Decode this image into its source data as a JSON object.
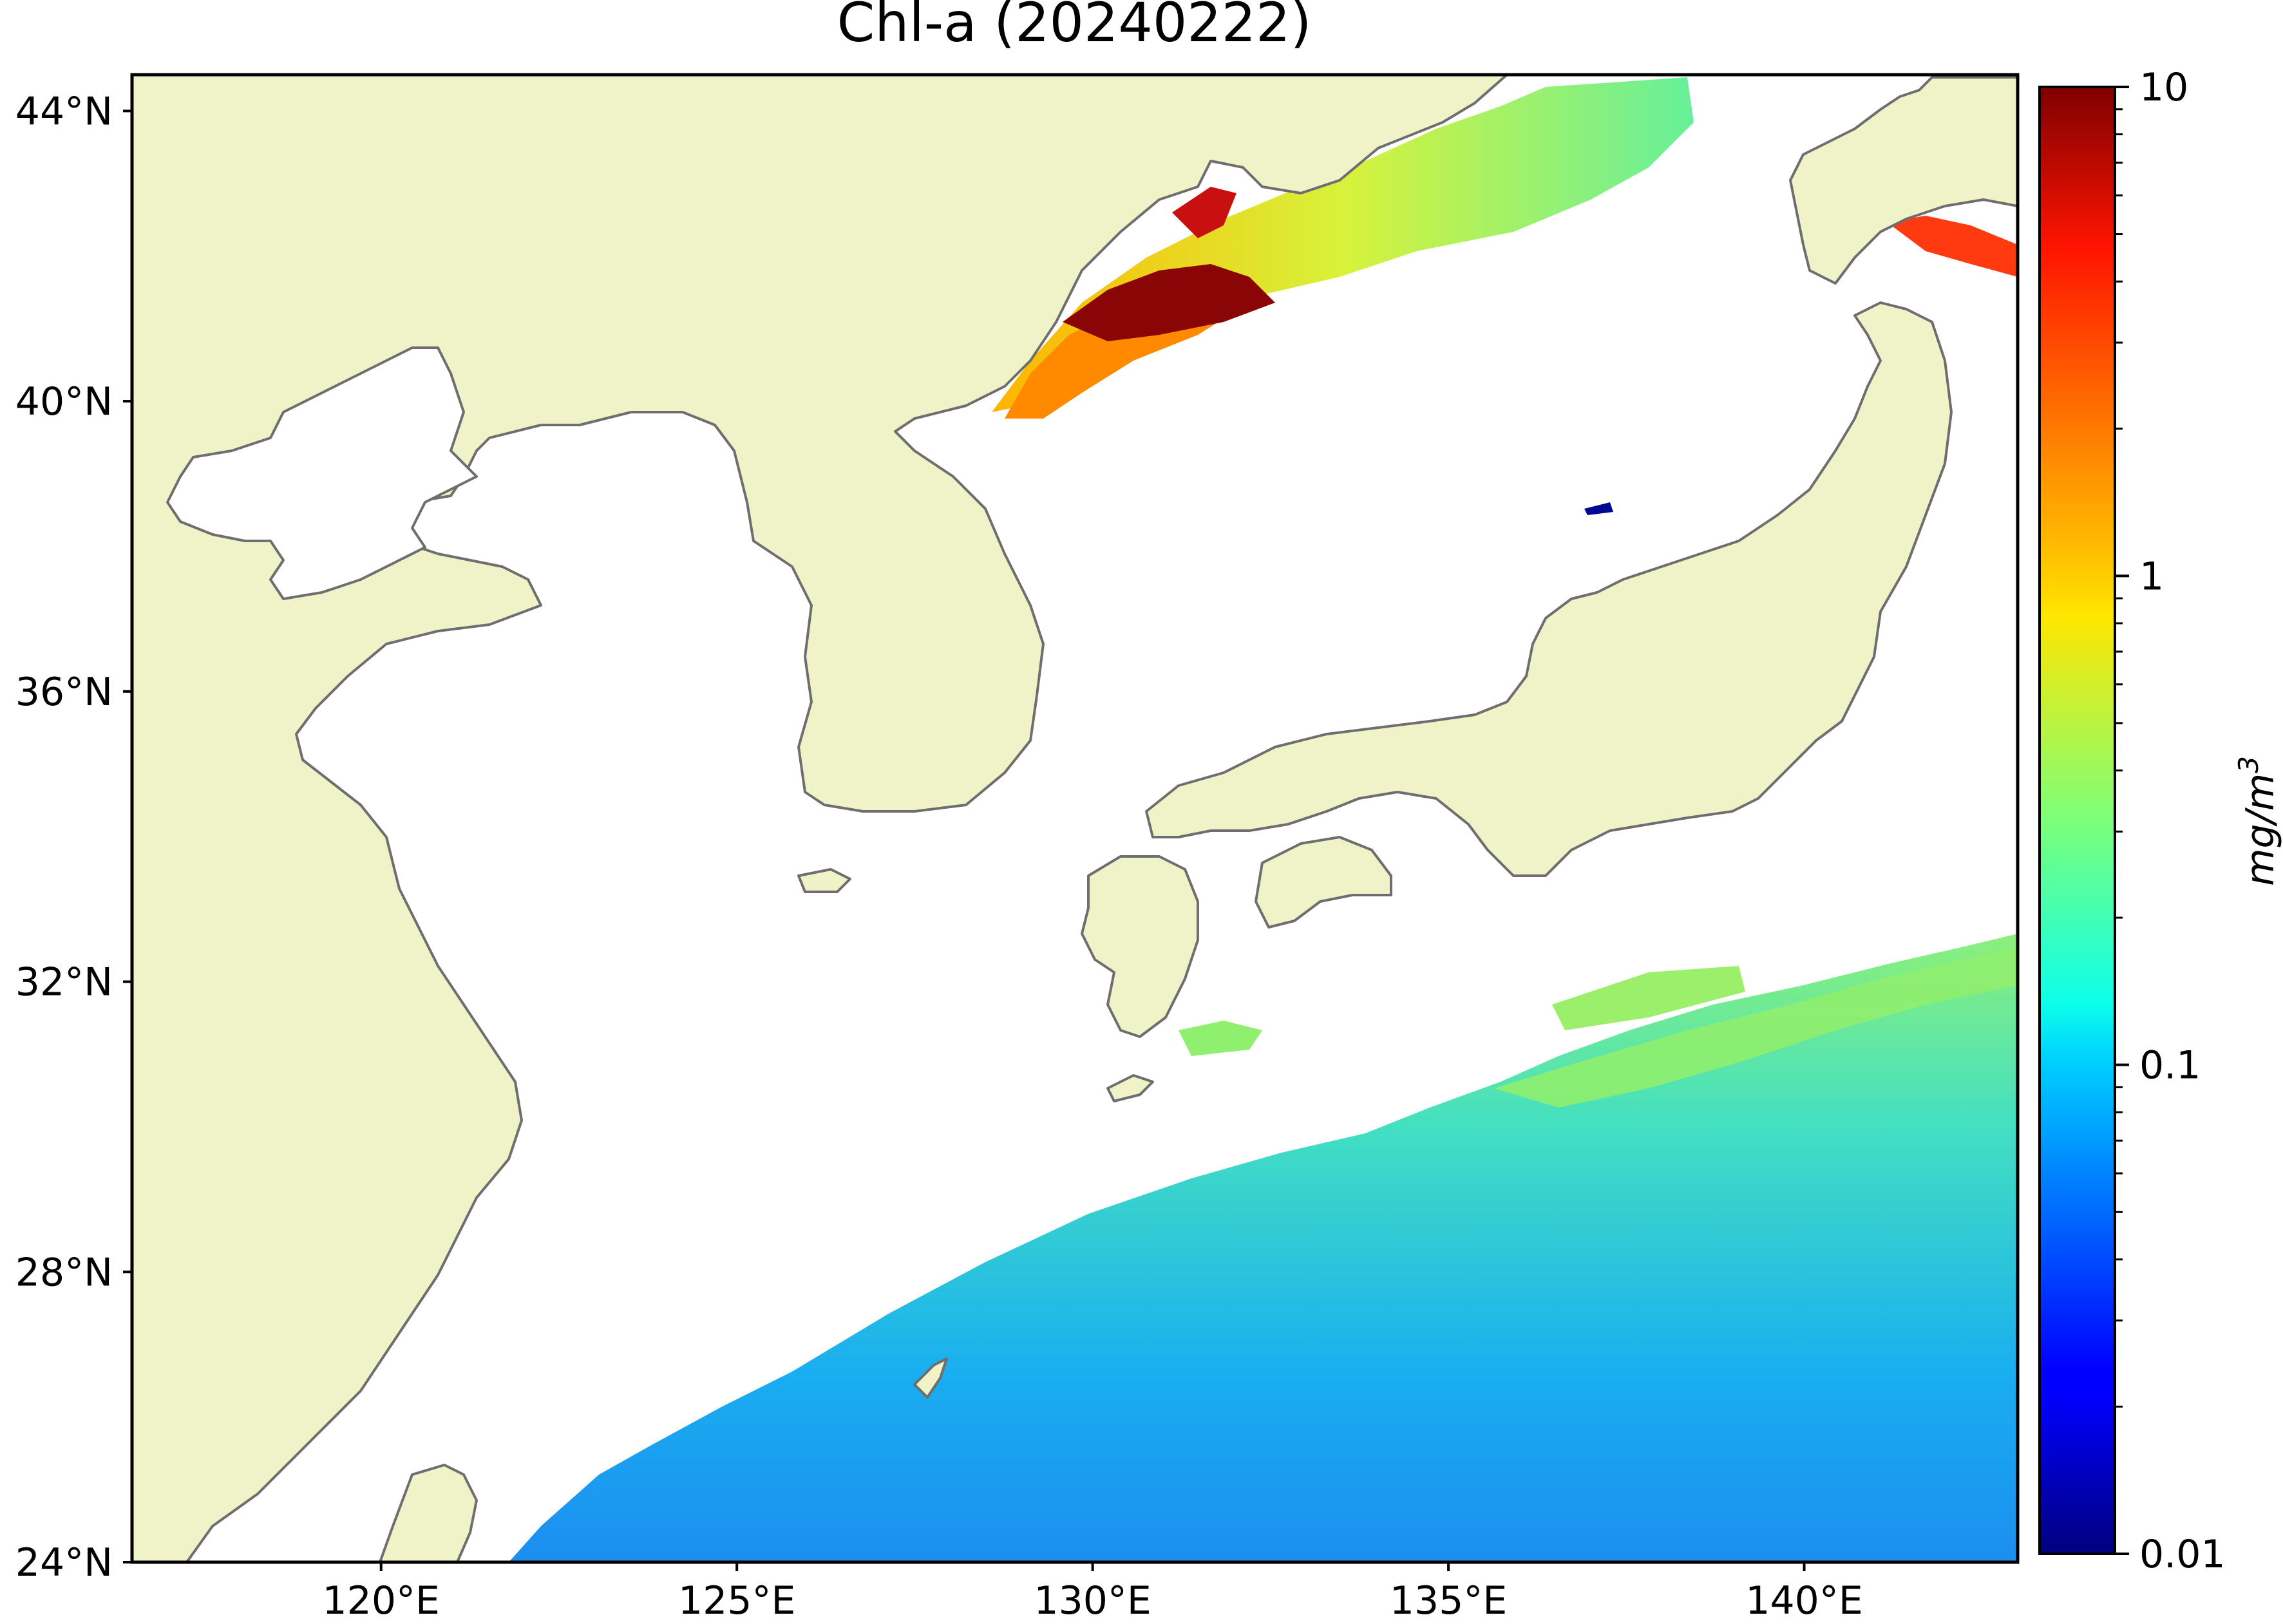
{
  "title": "Chl-a (20240222)",
  "map": {
    "lon_range": [
      116.5,
      143
    ],
    "lat_range": [
      24,
      44.5
    ],
    "x_ticks": [
      {
        "value": 120,
        "label": "120°E"
      },
      {
        "value": 125,
        "label": "125°E"
      },
      {
        "value": 130,
        "label": "130°E"
      },
      {
        "value": 135,
        "label": "135°E"
      },
      {
        "value": 140,
        "label": "140°E"
      }
    ],
    "y_ticks": [
      {
        "value": 44,
        "label": "44°N"
      },
      {
        "value": 40,
        "label": "40°N"
      },
      {
        "value": 36,
        "label": "36°N"
      },
      {
        "value": 32,
        "label": "32°N"
      },
      {
        "value": 28,
        "label": "28°N"
      },
      {
        "value": 24,
        "label": "24°N"
      }
    ],
    "colors": {
      "land": "#f0f3c8",
      "coastline": "#6e6e6e",
      "ocean_no_data": "#ffffff"
    }
  },
  "colorbar": {
    "label": "mg/m3",
    "label_base": "mg/m",
    "label_sup": "3",
    "scale": "log",
    "range": [
      0.01,
      10
    ],
    "colormap": "jet",
    "ticks": [
      {
        "value": 10,
        "label": "10"
      },
      {
        "value": 1,
        "label": "1"
      },
      {
        "value": 0.1,
        "label": "0.1"
      },
      {
        "value": 0.01,
        "label": "0.01"
      }
    ]
  }
}
